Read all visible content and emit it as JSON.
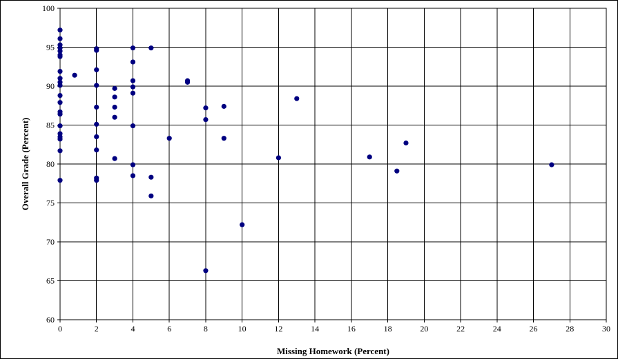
{
  "chart_data": {
    "type": "scatter",
    "title": "",
    "xlabel": "Missing Homework (Percent)",
    "ylabel": "Overall Grade (Percent)",
    "xlim": [
      0,
      30
    ],
    "ylim": [
      60,
      100
    ],
    "xticks": [
      0,
      2,
      4,
      6,
      8,
      10,
      12,
      14,
      16,
      18,
      20,
      22,
      24,
      26,
      28,
      30
    ],
    "yticks": [
      60,
      65,
      70,
      75,
      80,
      85,
      90,
      95,
      100
    ],
    "grid": true,
    "marker_color": "#000080",
    "points": [
      [
        0,
        97.2
      ],
      [
        0,
        96.1
      ],
      [
        0,
        95.3
      ],
      [
        0,
        94.9
      ],
      [
        0,
        94.5
      ],
      [
        0,
        94.0
      ],
      [
        0,
        93.8
      ],
      [
        0,
        91.9
      ],
      [
        0,
        91.0
      ],
      [
        0,
        90.5
      ],
      [
        0,
        90.1
      ],
      [
        0,
        88.8
      ],
      [
        0,
        87.9
      ],
      [
        0,
        86.7
      ],
      [
        0,
        86.4
      ],
      [
        0,
        84.9
      ],
      [
        0,
        83.9
      ],
      [
        0,
        83.5
      ],
      [
        0,
        83.2
      ],
      [
        0,
        81.7
      ],
      [
        0,
        77.9
      ],
      [
        0.8,
        91.4
      ],
      [
        2,
        94.8
      ],
      [
        2,
        94.6
      ],
      [
        2,
        90.1
      ],
      [
        2,
        87.3
      ],
      [
        2,
        92.1
      ],
      [
        2,
        85.1
      ],
      [
        2,
        83.5
      ],
      [
        2,
        81.8
      ],
      [
        2,
        78.2
      ],
      [
        2,
        77.9
      ],
      [
        3,
        89.7
      ],
      [
        3,
        88.6
      ],
      [
        3,
        87.3
      ],
      [
        3,
        86.0
      ],
      [
        3,
        80.7
      ],
      [
        4,
        94.9
      ],
      [
        4,
        93.1
      ],
      [
        4,
        90.7
      ],
      [
        4,
        89.9
      ],
      [
        4,
        89.1
      ],
      [
        4,
        84.9
      ],
      [
        4,
        79.9
      ],
      [
        4,
        78.5
      ],
      [
        5,
        94.9
      ],
      [
        5,
        78.3
      ],
      [
        5,
        75.9
      ],
      [
        6,
        83.3
      ],
      [
        7,
        90.7
      ],
      [
        7,
        90.5
      ],
      [
        8,
        87.2
      ],
      [
        8,
        85.7
      ],
      [
        8,
        66.3
      ],
      [
        9,
        87.4
      ],
      [
        9,
        83.3
      ],
      [
        10,
        72.2
      ],
      [
        12,
        80.8
      ],
      [
        13,
        88.4
      ],
      [
        17,
        80.9
      ],
      [
        18.5,
        79.1
      ],
      [
        19,
        82.7
      ],
      [
        27,
        79.9
      ]
    ]
  }
}
